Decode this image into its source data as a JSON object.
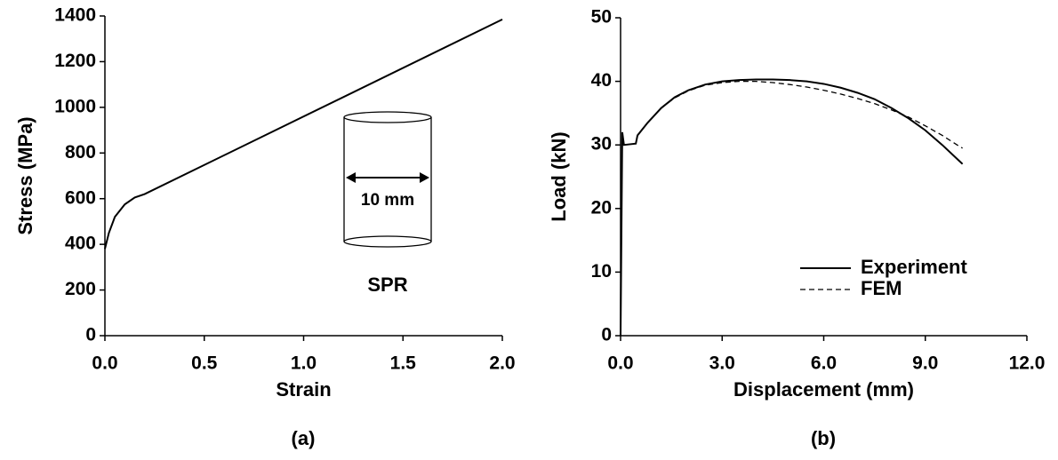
{
  "chart_data": [
    {
      "type": "line",
      "caption": "(a)",
      "xlabel": "Strain",
      "ylabel": "Stress (MPa)",
      "x": [
        0,
        0.02,
        0.05,
        0.1,
        0.15,
        0.2,
        2.0
      ],
      "values": [
        380,
        450,
        520,
        575,
        605,
        620,
        1385
      ],
      "color": "#000000",
      "linestyle": "solid",
      "xlim": [
        0,
        2
      ],
      "xticks": [
        {
          "value": 0,
          "label": "0.0"
        },
        0.5,
        {
          "value": 1,
          "label": "1.0"
        },
        1.5,
        {
          "value": 2,
          "label": "2.0"
        }
      ],
      "ylim": [
        0,
        1400
      ],
      "yticks": [
        0,
        200,
        400,
        600,
        800,
        1000,
        1200,
        1400
      ],
      "annotations": [
        "10 mm",
        "SPR"
      ]
    },
    {
      "type": "line",
      "caption": "(b)",
      "xlabel": "Displacement (mm)",
      "ylabel": "Load (kN)",
      "x": [
        0,
        0.05,
        0.1,
        0.45,
        0.5,
        0.8,
        1.2,
        1.6,
        2.0,
        2.5,
        3.0,
        3.5,
        4.0,
        4.5,
        5.0,
        5.5,
        6.0,
        6.5,
        7.0,
        7.5,
        8.0,
        8.5,
        9.0,
        9.5,
        10.0,
        10.1
      ],
      "series": [
        {
          "name": "Experiment",
          "color": "#000000",
          "linestyle": "solid",
          "values": [
            0,
            32,
            30,
            30.2,
            31.5,
            33.5,
            35.8,
            37.5,
            38.6,
            39.5,
            40.0,
            40.2,
            40.3,
            40.3,
            40.2,
            40.0,
            39.6,
            39.0,
            38.2,
            37.2,
            35.8,
            34.2,
            32.3,
            30.0,
            27.5,
            27.0
          ]
        },
        {
          "name": "FEM",
          "color": "#000000",
          "linestyle": "dashed",
          "values": [
            null,
            null,
            null,
            null,
            31.5,
            33.5,
            35.8,
            37.4,
            38.5,
            39.4,
            39.8,
            40.0,
            40.0,
            39.8,
            39.5,
            39.1,
            38.6,
            38.0,
            37.3,
            36.5,
            35.5,
            34.4,
            33.0,
            31.5,
            29.8,
            29.5
          ]
        }
      ],
      "xlim": [
        0,
        12
      ],
      "xticks": [
        {
          "value": 0,
          "label": "0.0"
        },
        {
          "value": 3,
          "label": "3.0"
        },
        {
          "value": 6,
          "label": "6.0"
        },
        {
          "value": 9,
          "label": "9.0"
        },
        {
          "value": 12,
          "label": "12.0"
        }
      ],
      "ylim": [
        0,
        50
      ],
      "yticks": [
        0,
        10,
        20,
        30,
        40,
        50
      ],
      "legend": "lower right"
    }
  ]
}
